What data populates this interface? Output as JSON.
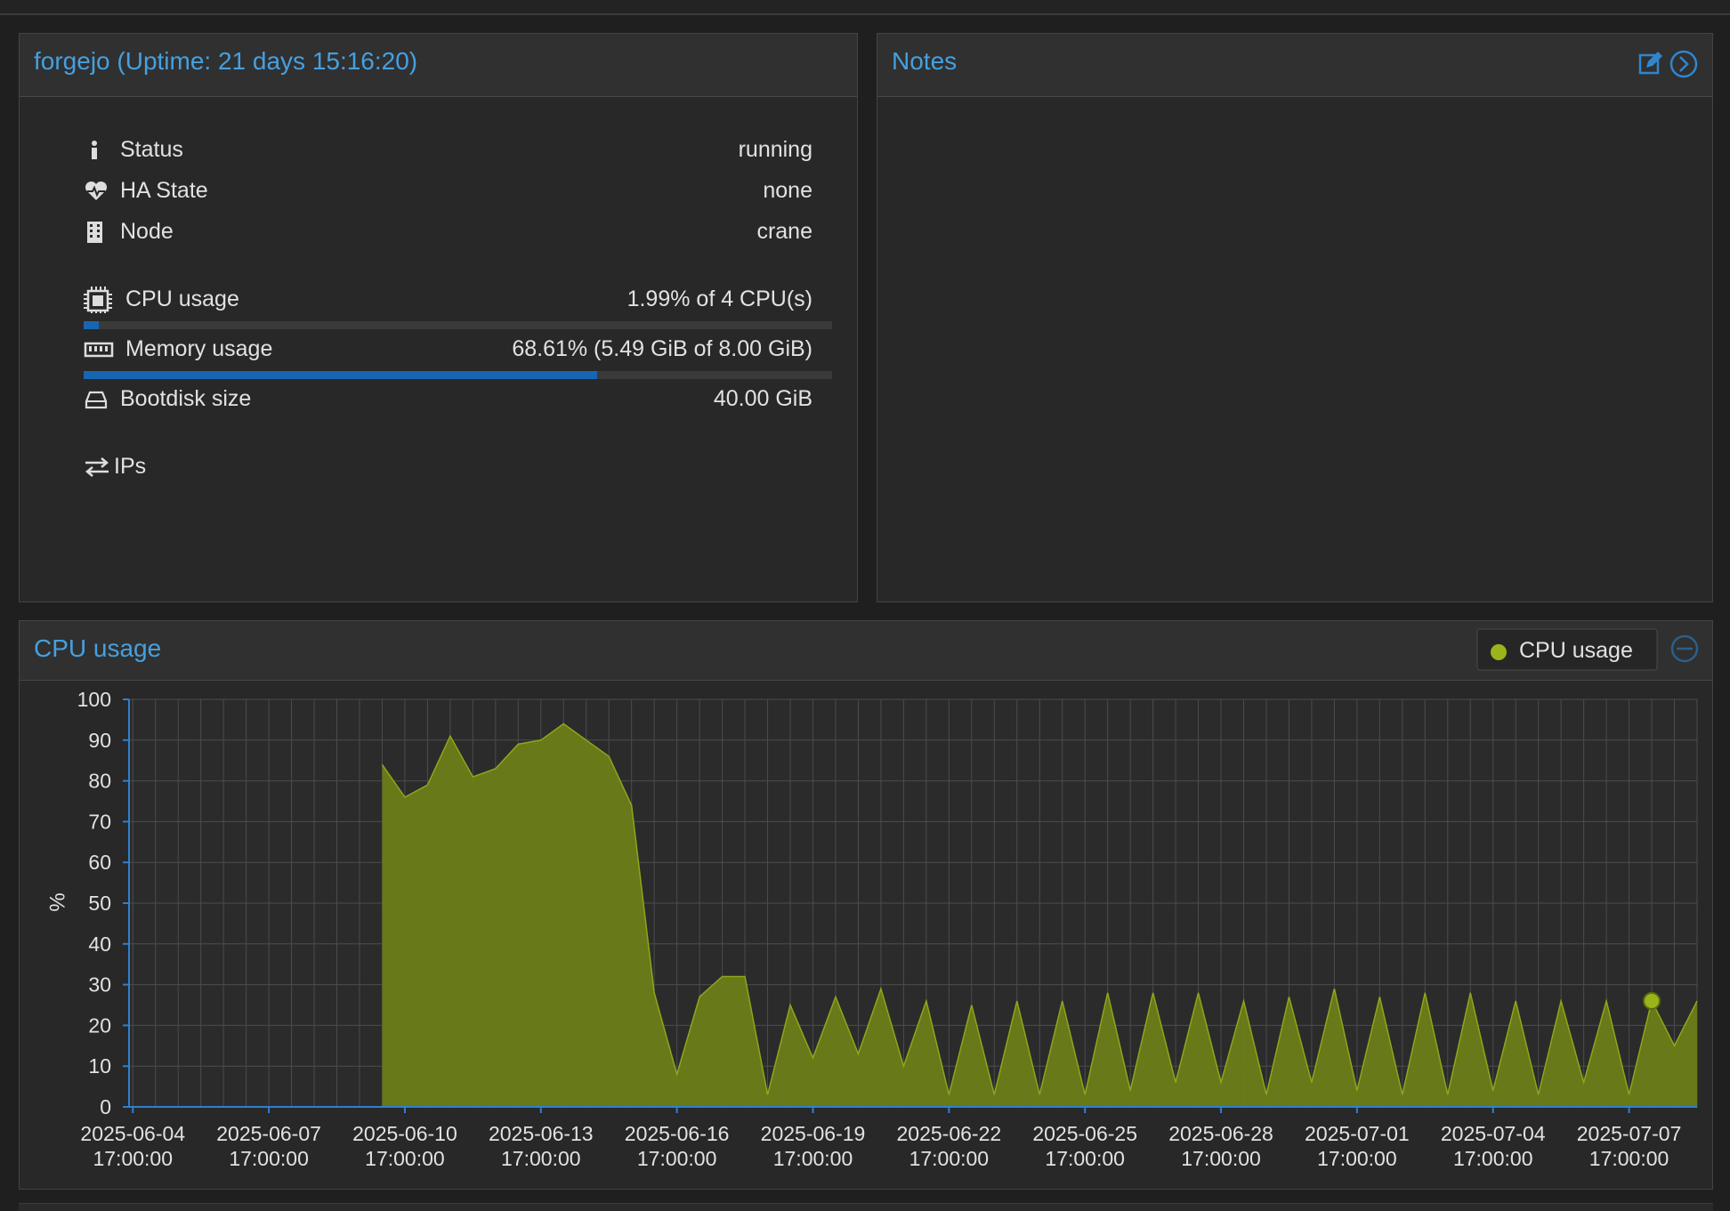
{
  "status_panel": {
    "title": "forgejo (Uptime: 21 days 15:16:20)",
    "rows": [
      {
        "label": "Status",
        "value": "running"
      },
      {
        "label": "HA State",
        "value": "none"
      },
      {
        "label": "Node",
        "value": "crane"
      }
    ],
    "cpu": {
      "label": "CPU usage",
      "value": "1.99% of 4 CPU(s)",
      "bar": 1.99
    },
    "memory": {
      "label": "Memory usage",
      "value": "68.61% (5.49 GiB of 8.00 GiB)",
      "bar": 68.61
    },
    "bootdisk": {
      "label": "Bootdisk size",
      "value": "40.00 GiB"
    },
    "ips": {
      "label": "IPs"
    }
  },
  "notes_panel": {
    "title": "Notes"
  },
  "chart_data": {
    "type": "area",
    "title": "CPU usage",
    "ylabel": "%",
    "x": [
      "2025-06-04 17:00:00",
      "2025-06-05 05:00:00",
      "2025-06-05 17:00:00",
      "2025-06-06 05:00:00",
      "2025-06-06 17:00:00",
      "2025-06-07 05:00:00",
      "2025-06-07 17:00:00",
      "2025-06-08 05:00:00",
      "2025-06-08 17:00:00",
      "2025-06-09 05:00:00",
      "2025-06-09 17:00:00",
      "2025-06-10 05:00:00",
      "2025-06-10 17:00:00",
      "2025-06-11 05:00:00",
      "2025-06-11 17:00:00",
      "2025-06-12 05:00:00",
      "2025-06-12 17:00:00",
      "2025-06-13 05:00:00",
      "2025-06-13 17:00:00",
      "2025-06-14 05:00:00",
      "2025-06-14 17:00:00",
      "2025-06-15 05:00:00",
      "2025-06-15 17:00:00",
      "2025-06-16 05:00:00",
      "2025-06-16 17:00:00",
      "2025-06-17 05:00:00",
      "2025-06-17 17:00:00",
      "2025-06-18 05:00:00",
      "2025-06-18 17:00:00",
      "2025-06-19 05:00:00",
      "2025-06-19 17:00:00",
      "2025-06-20 05:00:00",
      "2025-06-20 17:00:00",
      "2025-06-21 05:00:00",
      "2025-06-21 17:00:00",
      "2025-06-22 05:00:00",
      "2025-06-22 17:00:00",
      "2025-06-23 05:00:00",
      "2025-06-23 17:00:00",
      "2025-06-24 05:00:00",
      "2025-06-24 17:00:00",
      "2025-06-25 05:00:00",
      "2025-06-25 17:00:00",
      "2025-06-26 05:00:00",
      "2025-06-26 17:00:00",
      "2025-06-27 05:00:00",
      "2025-06-27 17:00:00",
      "2025-06-28 05:00:00",
      "2025-06-28 17:00:00",
      "2025-06-29 05:00:00",
      "2025-06-29 17:00:00",
      "2025-06-30 05:00:00",
      "2025-06-30 17:00:00",
      "2025-07-01 05:00:00",
      "2025-07-01 17:00:00",
      "2025-07-02 05:00:00",
      "2025-07-02 17:00:00",
      "2025-07-03 05:00:00",
      "2025-07-03 17:00:00",
      "2025-07-04 05:00:00",
      "2025-07-04 17:00:00",
      "2025-07-05 05:00:00",
      "2025-07-05 17:00:00",
      "2025-07-06 05:00:00",
      "2025-07-06 17:00:00",
      "2025-07-07 05:00:00",
      "2025-07-07 17:00:00",
      "2025-07-08 05:00:00",
      "2025-07-08 17:00:00",
      "2025-07-09 05:00:00"
    ],
    "series": [
      {
        "name": "CPU usage",
        "color": "#6a7d17",
        "line_color": "#8ea61c",
        "marker_color": "#9ab51a",
        "values": [
          null,
          null,
          null,
          null,
          null,
          null,
          null,
          null,
          null,
          null,
          null,
          84,
          76,
          79,
          91,
          81,
          83,
          89,
          90,
          94,
          90,
          86,
          74,
          28,
          8,
          27,
          32,
          32,
          3,
          25,
          12,
          27,
          13,
          29,
          10,
          26,
          3,
          25,
          3,
          26,
          3,
          26,
          3,
          28,
          4,
          28,
          6,
          28,
          6,
          26,
          3,
          27,
          6,
          29,
          4,
          27,
          3,
          28,
          3,
          28,
          4,
          26,
          3,
          26,
          6,
          26,
          3,
          26,
          15,
          26
        ]
      }
    ],
    "highlighted_x": "2025-07-08 05:00:00",
    "xlim": [
      "2025-06-04 15:00:00",
      "2025-07-09 05:00:00"
    ],
    "xticks": [
      "2025-06-04 17:00:00",
      "2025-06-07 17:00:00",
      "2025-06-10 17:00:00",
      "2025-06-13 17:00:00",
      "2025-06-16 17:00:00",
      "2025-06-19 17:00:00",
      "2025-06-22 17:00:00",
      "2025-06-25 17:00:00",
      "2025-06-28 17:00:00",
      "2025-07-01 17:00:00",
      "2025-07-04 17:00:00",
      "2025-07-07 17:00:00"
    ],
    "ylim": [
      0,
      100
    ],
    "yticks": [
      0,
      10,
      20,
      30,
      40,
      50,
      60,
      70,
      80,
      90,
      100
    ],
    "grid": true,
    "legend": "top-right"
  }
}
